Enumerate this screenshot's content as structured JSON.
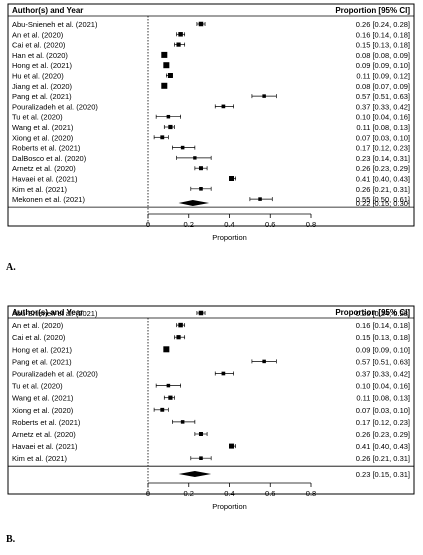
{
  "chart_data": [
    {
      "type": "forest",
      "panel_label": "A.",
      "header": {
        "study": "Author(s) and Year",
        "estimate": "Proportion [95% CI]"
      },
      "xlabel": "Proportion",
      "xlim": [
        0,
        0.8
      ],
      "xticks": [
        "0",
        "0.2",
        "0.4",
        "0.6",
        "0.8"
      ],
      "reference_line": 0,
      "studies": [
        {
          "name": "Abu-Snieneh et al. (2021)",
          "estimate": 0.26,
          "lower": 0.24,
          "upper": 0.28,
          "label": "0.26 [0.24, 0.28]"
        },
        {
          "name": "An et al. (2020)",
          "estimate": 0.16,
          "lower": 0.14,
          "upper": 0.18,
          "label": "0.16 [0.14, 0.18]"
        },
        {
          "name": "Cai et al. (2020)",
          "estimate": 0.15,
          "lower": 0.13,
          "upper": 0.18,
          "label": "0.15 [0.13, 0.18]"
        },
        {
          "name": "Han et al. (2020)",
          "estimate": 0.08,
          "lower": 0.08,
          "upper": 0.09,
          "label": "0.08 [0.08, 0.09]"
        },
        {
          "name": "Hong et al. (2021)",
          "estimate": 0.09,
          "lower": 0.09,
          "upper": 0.1,
          "label": "0.09 [0.09, 0.10]"
        },
        {
          "name": "Hu et al. (2020)",
          "estimate": 0.11,
          "lower": 0.09,
          "upper": 0.12,
          "label": "0.11 [0.09, 0.12]"
        },
        {
          "name": "Jiang et al. (2020)",
          "estimate": 0.08,
          "lower": 0.07,
          "upper": 0.09,
          "label": "0.08 [0.07, 0.09]"
        },
        {
          "name": "Pang et al. (2021)",
          "estimate": 0.57,
          "lower": 0.51,
          "upper": 0.63,
          "label": "0.57 [0.51, 0.63]"
        },
        {
          "name": "Pouralizadeh et al. (2020)",
          "estimate": 0.37,
          "lower": 0.33,
          "upper": 0.42,
          "label": "0.37 [0.33, 0.42]"
        },
        {
          "name": "Tu et al. (2020)",
          "estimate": 0.1,
          "lower": 0.04,
          "upper": 0.16,
          "label": "0.10 [0.04, 0.16]"
        },
        {
          "name": "Wang et al. (2021)",
          "estimate": 0.11,
          "lower": 0.08,
          "upper": 0.13,
          "label": "0.11 [0.08, 0.13]"
        },
        {
          "name": "Xiong et al. (2020)",
          "estimate": 0.07,
          "lower": 0.03,
          "upper": 0.1,
          "label": "0.07 [0.03, 0.10]"
        },
        {
          "name": "Roberts et al. (2021)",
          "estimate": 0.17,
          "lower": 0.12,
          "upper": 0.23,
          "label": "0.17 [0.12, 0.23]"
        },
        {
          "name": "DalBosco et al. (2020)",
          "estimate": 0.23,
          "lower": 0.14,
          "upper": 0.31,
          "label": "0.23 [0.14, 0.31]"
        },
        {
          "name": "Arnetz et al. (2020)",
          "estimate": 0.26,
          "lower": 0.23,
          "upper": 0.29,
          "label": "0.26 [0.23, 0.29]"
        },
        {
          "name": "Havaei et al. (2021)",
          "estimate": 0.41,
          "lower": 0.4,
          "upper": 0.43,
          "label": "0.41 [0.40, 0.43]"
        },
        {
          "name": "Kim et al. (2021)",
          "estimate": 0.26,
          "lower": 0.21,
          "upper": 0.31,
          "label": "0.26 [0.21, 0.31]"
        },
        {
          "name": "Mekonen et al. (2021)",
          "estimate": 0.55,
          "lower": 0.5,
          "upper": 0.61,
          "label": "0.55 [0.50, 0.61]"
        }
      ],
      "summary": {
        "estimate": 0.22,
        "lower": 0.15,
        "upper": 0.3,
        "label": "0.22 [0.15, 0.30]"
      }
    },
    {
      "type": "forest",
      "panel_label": "B.",
      "header": {
        "study": "Author(s) and Year",
        "estimate": "Proportion [95% CI]"
      },
      "xlabel": "Proportion",
      "xlim": [
        0,
        0.8
      ],
      "xticks": [
        "0",
        "0.2",
        "0.4",
        "0.6",
        "0.8"
      ],
      "reference_line": 0,
      "studies": [
        {
          "name": "Abu-Snieneh et al. (2021)",
          "estimate": 0.26,
          "lower": 0.24,
          "upper": 0.28,
          "label": "0.26 [0.24, 0.28]"
        },
        {
          "name": "An et al. (2020)",
          "estimate": 0.16,
          "lower": 0.14,
          "upper": 0.18,
          "label": "0.16 [0.14, 0.18]"
        },
        {
          "name": "Cai et al. (2020)",
          "estimate": 0.15,
          "lower": 0.13,
          "upper": 0.18,
          "label": "0.15 [0.13, 0.18]"
        },
        {
          "name": "Hong et al. (2021)",
          "estimate": 0.09,
          "lower": 0.09,
          "upper": 0.1,
          "label": "0.09 [0.09, 0.10]"
        },
        {
          "name": "Pang et al. (2021)",
          "estimate": 0.57,
          "lower": 0.51,
          "upper": 0.63,
          "label": "0.57 [0.51, 0.63]"
        },
        {
          "name": "Pouralizadeh et al. (2020)",
          "estimate": 0.37,
          "lower": 0.33,
          "upper": 0.42,
          "label": "0.37 [0.33, 0.42]"
        },
        {
          "name": "Tu et al. (2020)",
          "estimate": 0.1,
          "lower": 0.04,
          "upper": 0.16,
          "label": "0.10 [0.04, 0.16]"
        },
        {
          "name": "Wang et al. (2021)",
          "estimate": 0.11,
          "lower": 0.08,
          "upper": 0.13,
          "label": "0.11 [0.08, 0.13]"
        },
        {
          "name": "Xiong et al. (2020)",
          "estimate": 0.07,
          "lower": 0.03,
          "upper": 0.1,
          "label": "0.07 [0.03, 0.10]"
        },
        {
          "name": "Roberts et al. (2021)",
          "estimate": 0.17,
          "lower": 0.12,
          "upper": 0.23,
          "label": "0.17 [0.12, 0.23]"
        },
        {
          "name": "Arnetz et al. (2020)",
          "estimate": 0.26,
          "lower": 0.23,
          "upper": 0.29,
          "label": "0.26 [0.23, 0.29]"
        },
        {
          "name": "Havaei et al. (2021)",
          "estimate": 0.41,
          "lower": 0.4,
          "upper": 0.43,
          "label": "0.41 [0.40, 0.43]"
        },
        {
          "name": "Kim et al. (2021)",
          "estimate": 0.26,
          "lower": 0.21,
          "upper": 0.31,
          "label": "0.26 [0.21, 0.31]"
        }
      ],
      "summary": {
        "estimate": 0.23,
        "lower": 0.15,
        "upper": 0.31,
        "label": "0.23 [0.15, 0.31]"
      }
    }
  ]
}
